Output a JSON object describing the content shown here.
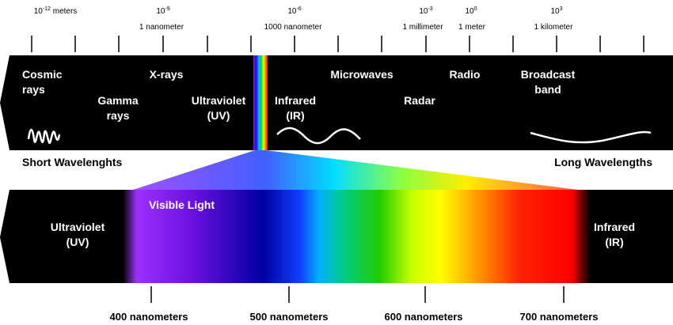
{
  "scale": {
    "marks": [
      {
        "base": "10",
        "exponent": "-12",
        "unit": "meters"
      },
      {
        "base": "10",
        "exponent": "-9",
        "label": "1 nanometer"
      },
      {
        "base": "10",
        "exponent": "-6",
        "label": "1000 nanometer"
      },
      {
        "base": "10",
        "exponent": "-3",
        "label": "1 millimeter"
      },
      {
        "base": "10",
        "exponent": "0",
        "label": "1 meter"
      },
      {
        "base": "10",
        "exponent": "3",
        "label": "1 kilometer"
      }
    ]
  },
  "spectrum": {
    "bands": [
      {
        "lines": [
          "Cosmic",
          "rays"
        ]
      },
      {
        "lines": [
          "X-rays"
        ]
      },
      {
        "lines": [
          "Gamma",
          "rays"
        ]
      },
      {
        "lines": [
          "Ultraviolet",
          "(UV)"
        ]
      },
      {
        "lines": [
          "Infrared",
          "(IR)"
        ]
      },
      {
        "lines": [
          "Microwaves"
        ]
      },
      {
        "lines": [
          "Radio"
        ]
      },
      {
        "lines": [
          "Radar"
        ]
      },
      {
        "lines": [
          "Broadcast",
          "band"
        ]
      }
    ]
  },
  "direction": {
    "short": "Short Wavelenghts",
    "long": "Long Wavelengths"
  },
  "visible": {
    "left": {
      "lines": [
        "Ultraviolet",
        "(UV)"
      ]
    },
    "title": "Visible Light",
    "right": {
      "lines": [
        "Infrared",
        "(IR)"
      ]
    },
    "ticks": [
      "400 nanometers",
      "500 nanometers",
      "600 nanometers",
      "700 nanometers"
    ]
  }
}
